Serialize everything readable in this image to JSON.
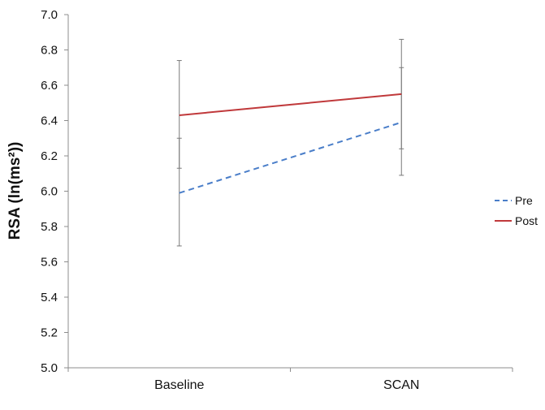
{
  "chart_data": {
    "type": "line",
    "ylabel": "RSA (ln(ms²))",
    "ylim": [
      5.0,
      7.0
    ],
    "y_ticks": [
      "5.0",
      "5.2",
      "5.4",
      "5.6",
      "5.8",
      "6.0",
      "6.2",
      "6.4",
      "6.6",
      "6.8",
      "7.0"
    ],
    "categories": [
      "Baseline",
      "SCAN"
    ],
    "grid": false,
    "legend_position": "right",
    "series": [
      {
        "name": "Pre",
        "values": [
          5.99,
          6.39
        ],
        "error_low": [
          5.69,
          6.09
        ],
        "error_high": [
          6.3,
          6.7
        ],
        "color": "#4a7ec9",
        "dash": "dashed"
      },
      {
        "name": "Post",
        "values": [
          6.43,
          6.55
        ],
        "error_low": [
          6.13,
          6.24
        ],
        "error_high": [
          6.74,
          6.86
        ],
        "color": "#c0393b",
        "dash": "solid"
      }
    ]
  }
}
